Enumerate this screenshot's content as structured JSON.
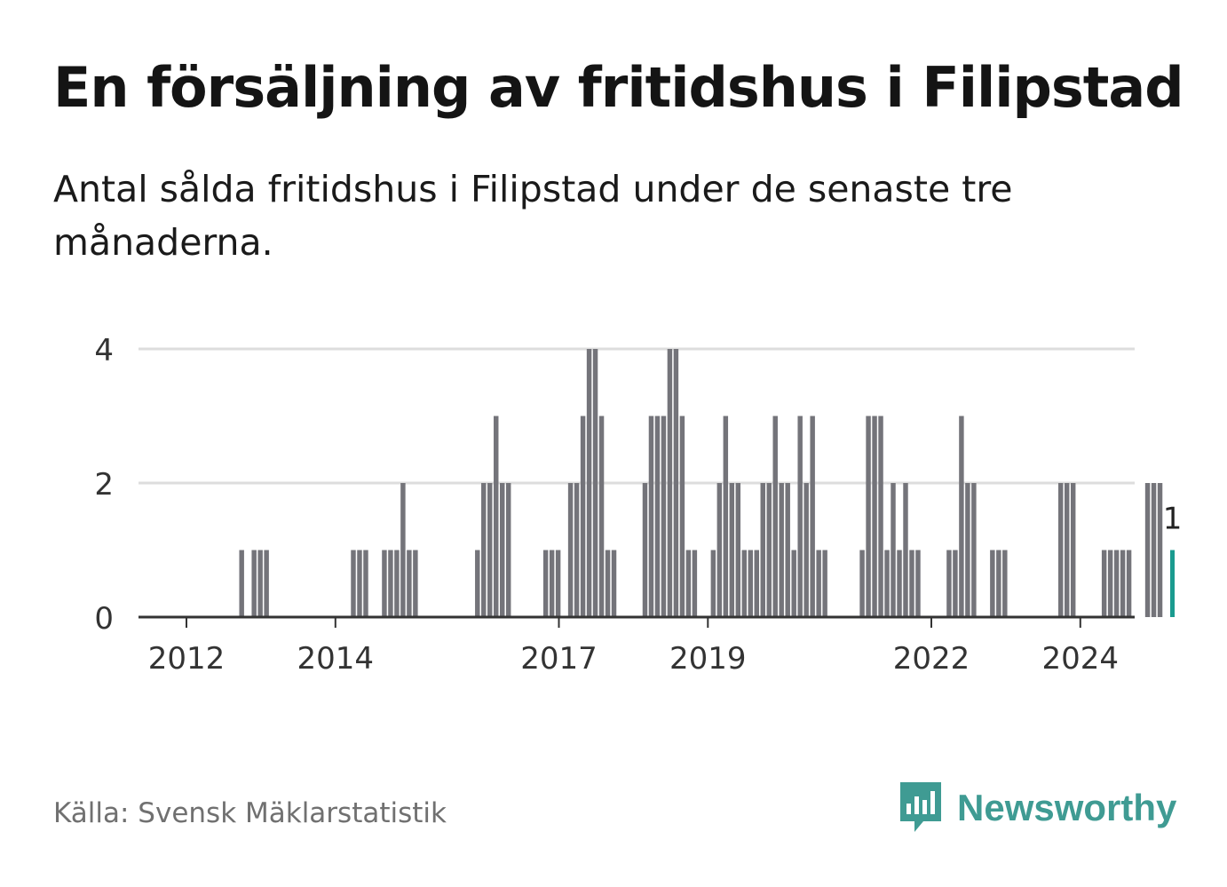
{
  "title": "En försäljning av fritidshus i Filipstad",
  "subtitle": "Antal sålda fritidshus i Filipstad under de senaste tre månaderna.",
  "source": "Källa: Svensk Mäklarstatistik",
  "brand": {
    "name": "Newsworthy",
    "icon": "newsworthy-logo-icon",
    "color": "#3f9b93"
  },
  "colors": {
    "bar": "#74747a",
    "highlight": "#1a9b8f",
    "grid": "#dddddd",
    "axis": "#333333",
    "text": "#333333"
  },
  "chart_data": {
    "type": "bar",
    "title": "En försäljning av fritidshus i Filipstad",
    "xlabel": "",
    "ylabel": "",
    "ylim": [
      0,
      4
    ],
    "yticks": [
      0,
      2,
      4
    ],
    "xticks": [
      "2012",
      "2014",
      "2017",
      "2019",
      "2022",
      "2024"
    ],
    "x_start_year": 2011.7,
    "bar_step_years": 0.0833,
    "grid": true,
    "values": [
      0,
      0,
      0,
      0,
      0,
      0,
      0,
      0,
      0,
      0,
      0,
      0,
      1,
      0,
      1,
      1,
      1,
      0,
      0,
      0,
      0,
      0,
      0,
      0,
      0,
      0,
      0,
      0,
      0,
      0,
      1,
      1,
      1,
      0,
      0,
      1,
      1,
      1,
      2,
      1,
      1,
      0,
      0,
      0,
      0,
      0,
      0,
      0,
      0,
      0,
      1,
      2,
      2,
      3,
      2,
      2,
      0,
      0,
      0,
      0,
      0,
      1,
      1,
      1,
      0,
      2,
      2,
      3,
      4,
      4,
      3,
      1,
      1,
      0,
      0,
      0,
      0,
      2,
      3,
      3,
      3,
      4,
      4,
      3,
      1,
      1,
      0,
      0,
      1,
      2,
      3,
      2,
      2,
      1,
      1,
      1,
      2,
      2,
      3,
      2,
      2,
      1,
      3,
      2,
      3,
      1,
      1,
      0,
      0,
      0,
      0,
      0,
      1,
      3,
      3,
      3,
      1,
      2,
      1,
      2,
      1,
      1,
      0,
      0,
      0,
      0,
      1,
      1,
      3,
      2,
      2,
      0,
      0,
      1,
      1,
      1,
      0,
      0,
      0,
      0,
      0,
      0,
      0,
      0,
      2,
      2,
      2,
      0,
      0,
      0,
      0,
      1,
      1,
      1,
      1,
      1,
      0,
      0,
      2,
      2,
      2,
      0,
      1
    ],
    "highlight_last": true,
    "annotation": {
      "label": "1",
      "value": 1
    }
  }
}
